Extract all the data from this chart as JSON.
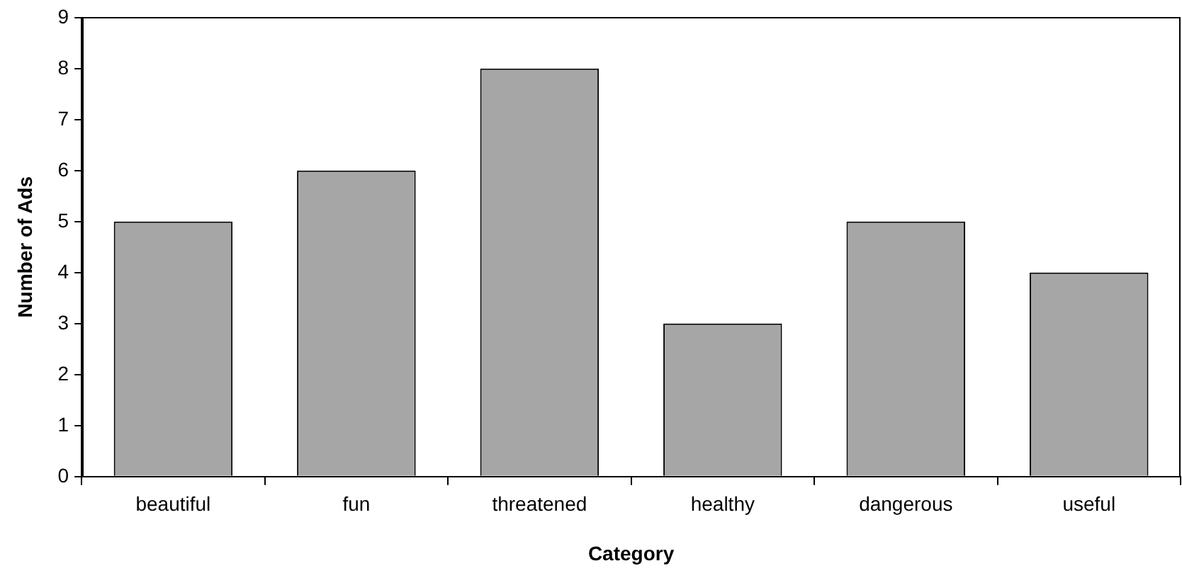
{
  "chart_data": {
    "type": "bar",
    "xlabel": "Category",
    "ylabel": "Number of Ads",
    "categories": [
      "beautiful",
      "fun",
      "threatened",
      "healthy",
      "dangerous",
      "useful"
    ],
    "values": [
      5,
      6,
      8,
      3,
      5,
      4
    ],
    "color": "#a6a6a6",
    "ylim": [
      0,
      9
    ],
    "yticks": [
      0,
      1,
      2,
      3,
      4,
      5,
      6,
      7,
      8,
      9
    ],
    "grid": false,
    "legend": false
  }
}
